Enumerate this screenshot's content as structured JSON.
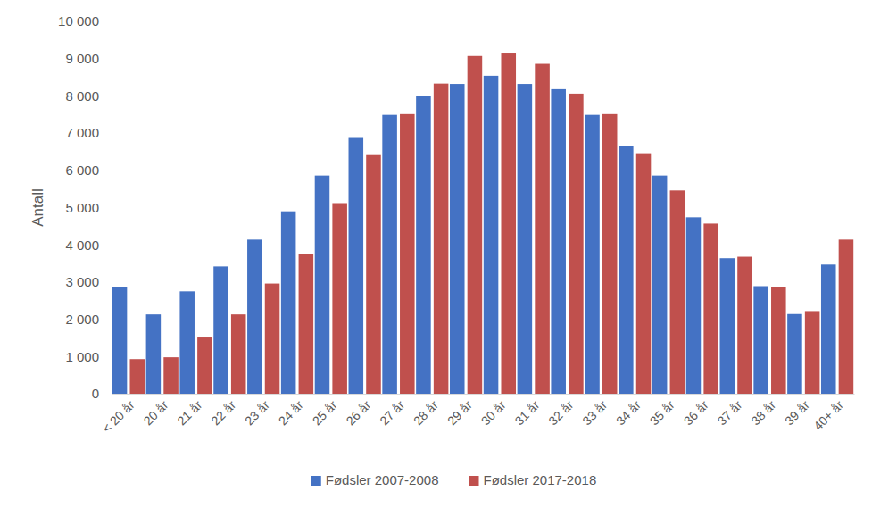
{
  "chart_data": {
    "type": "bar",
    "y_label": "Antall",
    "categories": [
      "< 20 år",
      "20 år",
      "21 år",
      "22 år",
      "23 år",
      "24 år",
      "25 år",
      "26 år",
      "27 år",
      "28 år",
      "29 år",
      "30 år",
      "31 år",
      "32 år",
      "33 år",
      "34 år",
      "35 år",
      "36 år",
      "37 år",
      "38 år",
      "39 år",
      "40+ år"
    ],
    "series": [
      {
        "name": "Fødsler 2007-2008",
        "color": "#4472c4",
        "values": [
          2870,
          2130,
          2750,
          3420,
          4140,
          4900,
          5860,
          6870,
          7490,
          7990,
          8320,
          8540,
          8320,
          8180,
          7490,
          6650,
          5860,
          4740,
          3640,
          2890,
          2140,
          3470
        ]
      },
      {
        "name": "Fødsler 2017-2018",
        "color": "#c0504d",
        "values": [
          930,
          980,
          1510,
          2130,
          2960,
          3760,
          5120,
          6410,
          7510,
          8330,
          9070,
          9160,
          8860,
          8060,
          7510,
          6460,
          5460,
          4570,
          3680,
          2870,
          2220,
          4140
        ]
      }
    ],
    "ylim": [
      0,
      10000
    ],
    "yticks": [
      0,
      {
        "value": 1000,
        "label": "1 000"
      },
      {
        "value": 2000,
        "label": "2 000"
      },
      {
        "value": 3000,
        "label": "3 000"
      },
      {
        "value": 4000,
        "label": "4 000"
      },
      {
        "value": 5000,
        "label": "5 000"
      },
      {
        "value": 6000,
        "label": "6 000"
      },
      {
        "value": 7000,
        "label": "7 000"
      },
      {
        "value": 8000,
        "label": "8 000"
      },
      {
        "value": 9000,
        "label": "9 000"
      },
      {
        "value": 10000,
        "label": "10 000"
      }
    ],
    "grid": false,
    "legend": "bottom"
  }
}
